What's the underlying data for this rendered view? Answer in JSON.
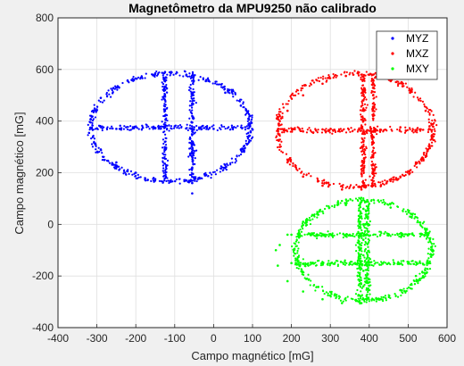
{
  "chart_data": {
    "type": "scatter",
    "title": "Magnetômetro da MPU9250 não calibrado",
    "xlabel": "Campo magnético [mG]",
    "ylabel": "Campo magnético [mG]",
    "xlim": [
      -400,
      600
    ],
    "ylim": [
      -400,
      800
    ],
    "xticks": [
      -400,
      -300,
      -200,
      -100,
      0,
      100,
      200,
      300,
      400,
      500,
      600
    ],
    "yticks": [
      -400,
      -200,
      0,
      200,
      400,
      600,
      800
    ],
    "grid": true,
    "legend_position": "top-right",
    "series": [
      {
        "name": "MYZ",
        "color": "#0000ff",
        "shape": "ellipse-with-cross",
        "center": [
          -110,
          375
        ],
        "radii": [
          205,
          210
        ],
        "x": [
          -315,
          -310,
          -290,
          -250,
          -200,
          -150,
          -110,
          -70,
          -20,
          30,
          70,
          90,
          95,
          70,
          30,
          -20,
          -70,
          -110,
          -150,
          -200,
          -250,
          -290,
          -310,
          -300,
          -250,
          -200,
          -150,
          -100,
          -50,
          0,
          50,
          100,
          -125,
          -125,
          -125,
          -125,
          -125,
          -55,
          -55,
          -55,
          -55,
          -55,
          -55,
          -55
        ],
        "y": [
          375,
          440,
          490,
          530,
          565,
          585,
          590,
          580,
          555,
          510,
          460,
          410,
          360,
          290,
          230,
          190,
          170,
          165,
          175,
          200,
          240,
          290,
          340,
          372,
          370,
          378,
          372,
          380,
          376,
          370,
          374,
          368,
          590,
          520,
          440,
          380,
          320,
          500,
          420,
          360,
          290,
          220,
          160,
          120
        ]
      },
      {
        "name": "MXZ",
        "color": "#ff0000",
        "shape": "ellipse-with-cross",
        "center": [
          365,
          365
        ],
        "radii": [
          200,
          220
        ],
        "x": [
          165,
          170,
          190,
          230,
          280,
          330,
          380,
          430,
          480,
          520,
          555,
          560,
          545,
          505,
          455,
          400,
          340,
          280,
          230,
          190,
          170,
          180,
          230,
          280,
          330,
          380,
          430,
          480,
          530,
          555,
          385,
          385,
          385,
          385,
          385,
          385,
          410,
          410,
          410,
          410,
          410,
          410
        ],
        "y": [
          365,
          300,
          240,
          185,
          150,
          135,
          135,
          150,
          185,
          240,
          300,
          365,
          440,
          510,
          555,
          580,
          575,
          545,
          500,
          440,
          400,
          365,
          360,
          368,
          362,
          372,
          366,
          376,
          368,
          380,
          560,
          480,
          400,
          320,
          240,
          160,
          580,
          500,
          420,
          340,
          260,
          180
        ]
      },
      {
        "name": "MXY",
        "color": "#00ff00",
        "shape": "ellipse-with-cross",
        "center": [
          385,
          -100
        ],
        "radii": [
          175,
          195
        ],
        "x": [
          160,
          165,
          190,
          230,
          280,
          330,
          380,
          430,
          480,
          520,
          550,
          560,
          545,
          505,
          455,
          400,
          340,
          280,
          230,
          190,
          170,
          200,
          250,
          300,
          350,
          400,
          450,
          500,
          550,
          200,
          250,
          300,
          350,
          400,
          450,
          500,
          550,
          385,
          385,
          385,
          385,
          385,
          385,
          375,
          375,
          375
        ],
        "y": [
          -100,
          -160,
          -220,
          -260,
          -290,
          -305,
          -305,
          -290,
          -255,
          -200,
          -140,
          -90,
          -20,
          30,
          65,
          80,
          75,
          50,
          10,
          -40,
          -80,
          -40,
          -42,
          -38,
          -40,
          -44,
          -38,
          -42,
          -40,
          -150,
          -148,
          -152,
          -150,
          -146,
          -150,
          -152,
          -148,
          60,
          0,
          -60,
          -120,
          -180,
          -240,
          -300,
          -200,
          -100
        ]
      }
    ]
  }
}
